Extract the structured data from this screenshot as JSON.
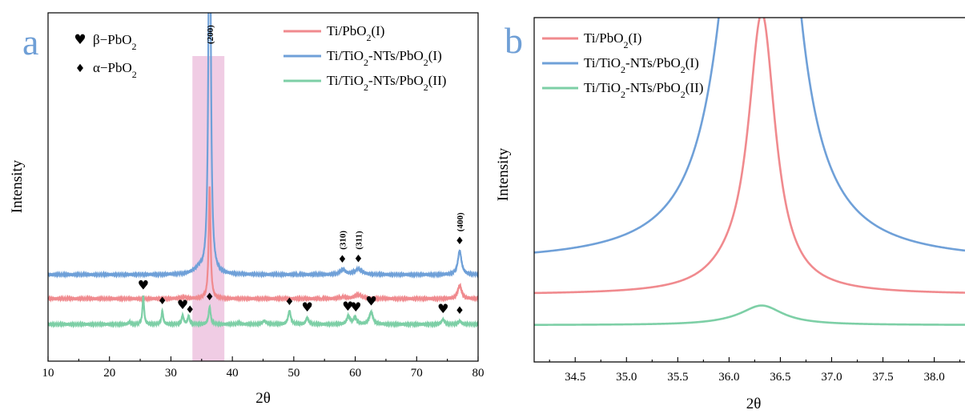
{
  "colors": {
    "ti_pbo2_i": "#f08a8e",
    "ti_tio2_nts_pbo2_i": "#6fa0d8",
    "ti_tio2_nts_pbo2_ii": "#7dcfa6",
    "highlight": "#e9b7d8",
    "panel_letter": "#6f9fd6"
  },
  "panel_a": {
    "letter": "a",
    "ylabel": "Intensity",
    "xlabel": "2θ",
    "phase_legend": [
      {
        "symbol": "♥",
        "name": "β−PbO",
        "sub": "2"
      },
      {
        "symbol": "♦",
        "name": "α−PbO",
        "sub": "2"
      }
    ],
    "legend": [
      {
        "parts": [
          [
            "Ti/PbO",
            ""
          ],
          [
            "2",
            "sub"
          ],
          [
            "(I)",
            ""
          ]
        ]
      },
      {
        "parts": [
          [
            "Ti/TiO",
            ""
          ],
          [
            "2",
            "sub"
          ],
          [
            "-NTs/PbO",
            ""
          ],
          [
            "2",
            "sub"
          ],
          [
            "(I)",
            ""
          ]
        ]
      },
      {
        "parts": [
          [
            "Ti/TiO",
            ""
          ],
          [
            "2",
            "sub"
          ],
          [
            "-NTs/PbO",
            ""
          ],
          [
            "2",
            "sub"
          ],
          [
            "(II)",
            ""
          ]
        ]
      }
    ],
    "peak_labels": [
      "(200)",
      "(310)",
      "(311)",
      "(400)"
    ]
  },
  "panel_b": {
    "letter": "b",
    "ylabel": "Intensity",
    "xlabel": "2θ"
  },
  "chart_data": [
    {
      "type": "line",
      "panel": "a",
      "xlabel": "2θ",
      "ylabel": "Intensity",
      "xlim": [
        10,
        80
      ],
      "xticks": [
        10,
        20,
        30,
        40,
        50,
        60,
        70,
        80
      ],
      "yticks": [],
      "highlight_range": [
        33.5,
        38.7
      ],
      "series": [
        {
          "name": "Ti/PbO2(I)",
          "color": "#f08a8e",
          "baseline": 32,
          "peaks": [
            [
              36.3,
              140,
              0.18
            ],
            [
              60.5,
              5,
              0.7
            ],
            [
              58.0,
              2,
              0.5
            ],
            [
              77.0,
              17,
              0.35
            ],
            [
              32.0,
              2,
              0.6
            ]
          ]
        },
        {
          "name": "Ti/TiO2-NTs/PbO2(I)",
          "color": "#6fa0d8",
          "baseline": 62,
          "peaks": [
            [
              36.3,
              600,
              0.2
            ],
            [
              34.5,
              6,
              0.9
            ],
            [
              58.0,
              6,
              0.5
            ],
            [
              60.5,
              7,
              0.7
            ],
            [
              77.0,
              30,
              0.35
            ]
          ]
        },
        {
          "name": "Ti/TiO2-NTs/PbO2(II)",
          "color": "#7dcfa6",
          "baseline": 0,
          "peaks": [
            [
              25.5,
              35,
              0.16
            ],
            [
              28.6,
              17,
              0.16
            ],
            [
              31.9,
              11,
              0.2
            ],
            [
              32.9,
              10,
              0.2
            ],
            [
              36.3,
              22,
              0.2
            ],
            [
              49.3,
              17,
              0.25
            ],
            [
              52.2,
              8,
              0.25
            ],
            [
              58.9,
              10,
              0.3
            ],
            [
              60.0,
              8,
              0.3
            ],
            [
              62.6,
              15,
              0.35
            ],
            [
              74.3,
              6,
              0.3
            ],
            [
              77.0,
              4,
              0.3
            ],
            [
              23.3,
              3,
              0.2
            ],
            [
              45.2,
              4,
              0.4
            ],
            [
              41.0,
              2,
              0.3
            ]
          ]
        }
      ],
      "markers": [
        {
          "x": 25.5,
          "symbol": "♥",
          "series": "Ti/TiO2-NTs/PbO2(II)"
        },
        {
          "x": 28.6,
          "symbol": "♦",
          "series": "Ti/TiO2-NTs/PbO2(II)"
        },
        {
          "x": 31.9,
          "symbol": "♥",
          "series": "Ti/TiO2-NTs/PbO2(II)"
        },
        {
          "x": 33.1,
          "symbol": "♦",
          "series": "Ti/TiO2-NTs/PbO2(II)"
        },
        {
          "x": 36.3,
          "symbol": "♦",
          "series": "Ti/TiO2-NTs/PbO2(II)"
        },
        {
          "x": 49.3,
          "symbol": "♦",
          "series": "Ti/TiO2-NTs/PbO2(II)"
        },
        {
          "x": 52.2,
          "symbol": "♥",
          "series": "Ti/TiO2-NTs/PbO2(II)"
        },
        {
          "x": 58.8,
          "symbol": "♥",
          "series": "Ti/TiO2-NTs/PbO2(II)"
        },
        {
          "x": 60.1,
          "symbol": "♥",
          "series": "Ti/TiO2-NTs/PbO2(II)"
        },
        {
          "x": 62.6,
          "symbol": "♥",
          "series": "Ti/TiO2-NTs/PbO2(II)"
        },
        {
          "x": 74.3,
          "symbol": "♥",
          "series": "Ti/TiO2-NTs/PbO2(II)"
        },
        {
          "x": 77.0,
          "symbol": "♦",
          "series": "Ti/TiO2-NTs/PbO2(II)"
        },
        {
          "x": 57.9,
          "symbol": "♦",
          "series": "Ti/TiO2-NTs/PbO2(I)",
          "label": "(310)"
        },
        {
          "x": 60.5,
          "symbol": "♦",
          "series": "Ti/TiO2-NTs/PbO2(I)",
          "label": "(311)"
        },
        {
          "x": 77.0,
          "symbol": "♦",
          "series": "Ti/TiO2-NTs/PbO2(I)",
          "label": "(400)"
        },
        {
          "x": 36.3,
          "symbol": "",
          "series": "Ti/TiO2-NTs/PbO2(I)",
          "label": "(200)"
        }
      ]
    },
    {
      "type": "line",
      "panel": "b",
      "xlabel": "2θ",
      "ylabel": "Intensity",
      "xlim": [
        34.1,
        38.3
      ],
      "xticks": [
        34.5,
        35.0,
        35.5,
        36.0,
        36.5,
        37.0,
        37.5,
        38.0
      ],
      "xtick_labels": [
        "34.5",
        "35.0",
        "35.5",
        "36.0",
        "36.5",
        "37.0",
        "37.5",
        "38.0"
      ],
      "yticks": [],
      "series": [
        {
          "name": "Ti/PbO2(I)",
          "color": "#f08a8e",
          "baseline": 38,
          "peak_x": 36.32,
          "amplitude": 345,
          "gamma": 0.16
        },
        {
          "name": "Ti/TiO2-NTs/PbO2(I)",
          "color": "#6fa0d8",
          "baseline": 78,
          "peak_x": 36.32,
          "amplitude": 1400,
          "gamma": 0.2
        },
        {
          "name": "Ti/TiO2-NTs/PbO2(II)",
          "color": "#7dcfa6",
          "baseline": 0,
          "peak_x": 36.32,
          "amplitude": 24,
          "gamma": 0.25
        }
      ]
    }
  ]
}
